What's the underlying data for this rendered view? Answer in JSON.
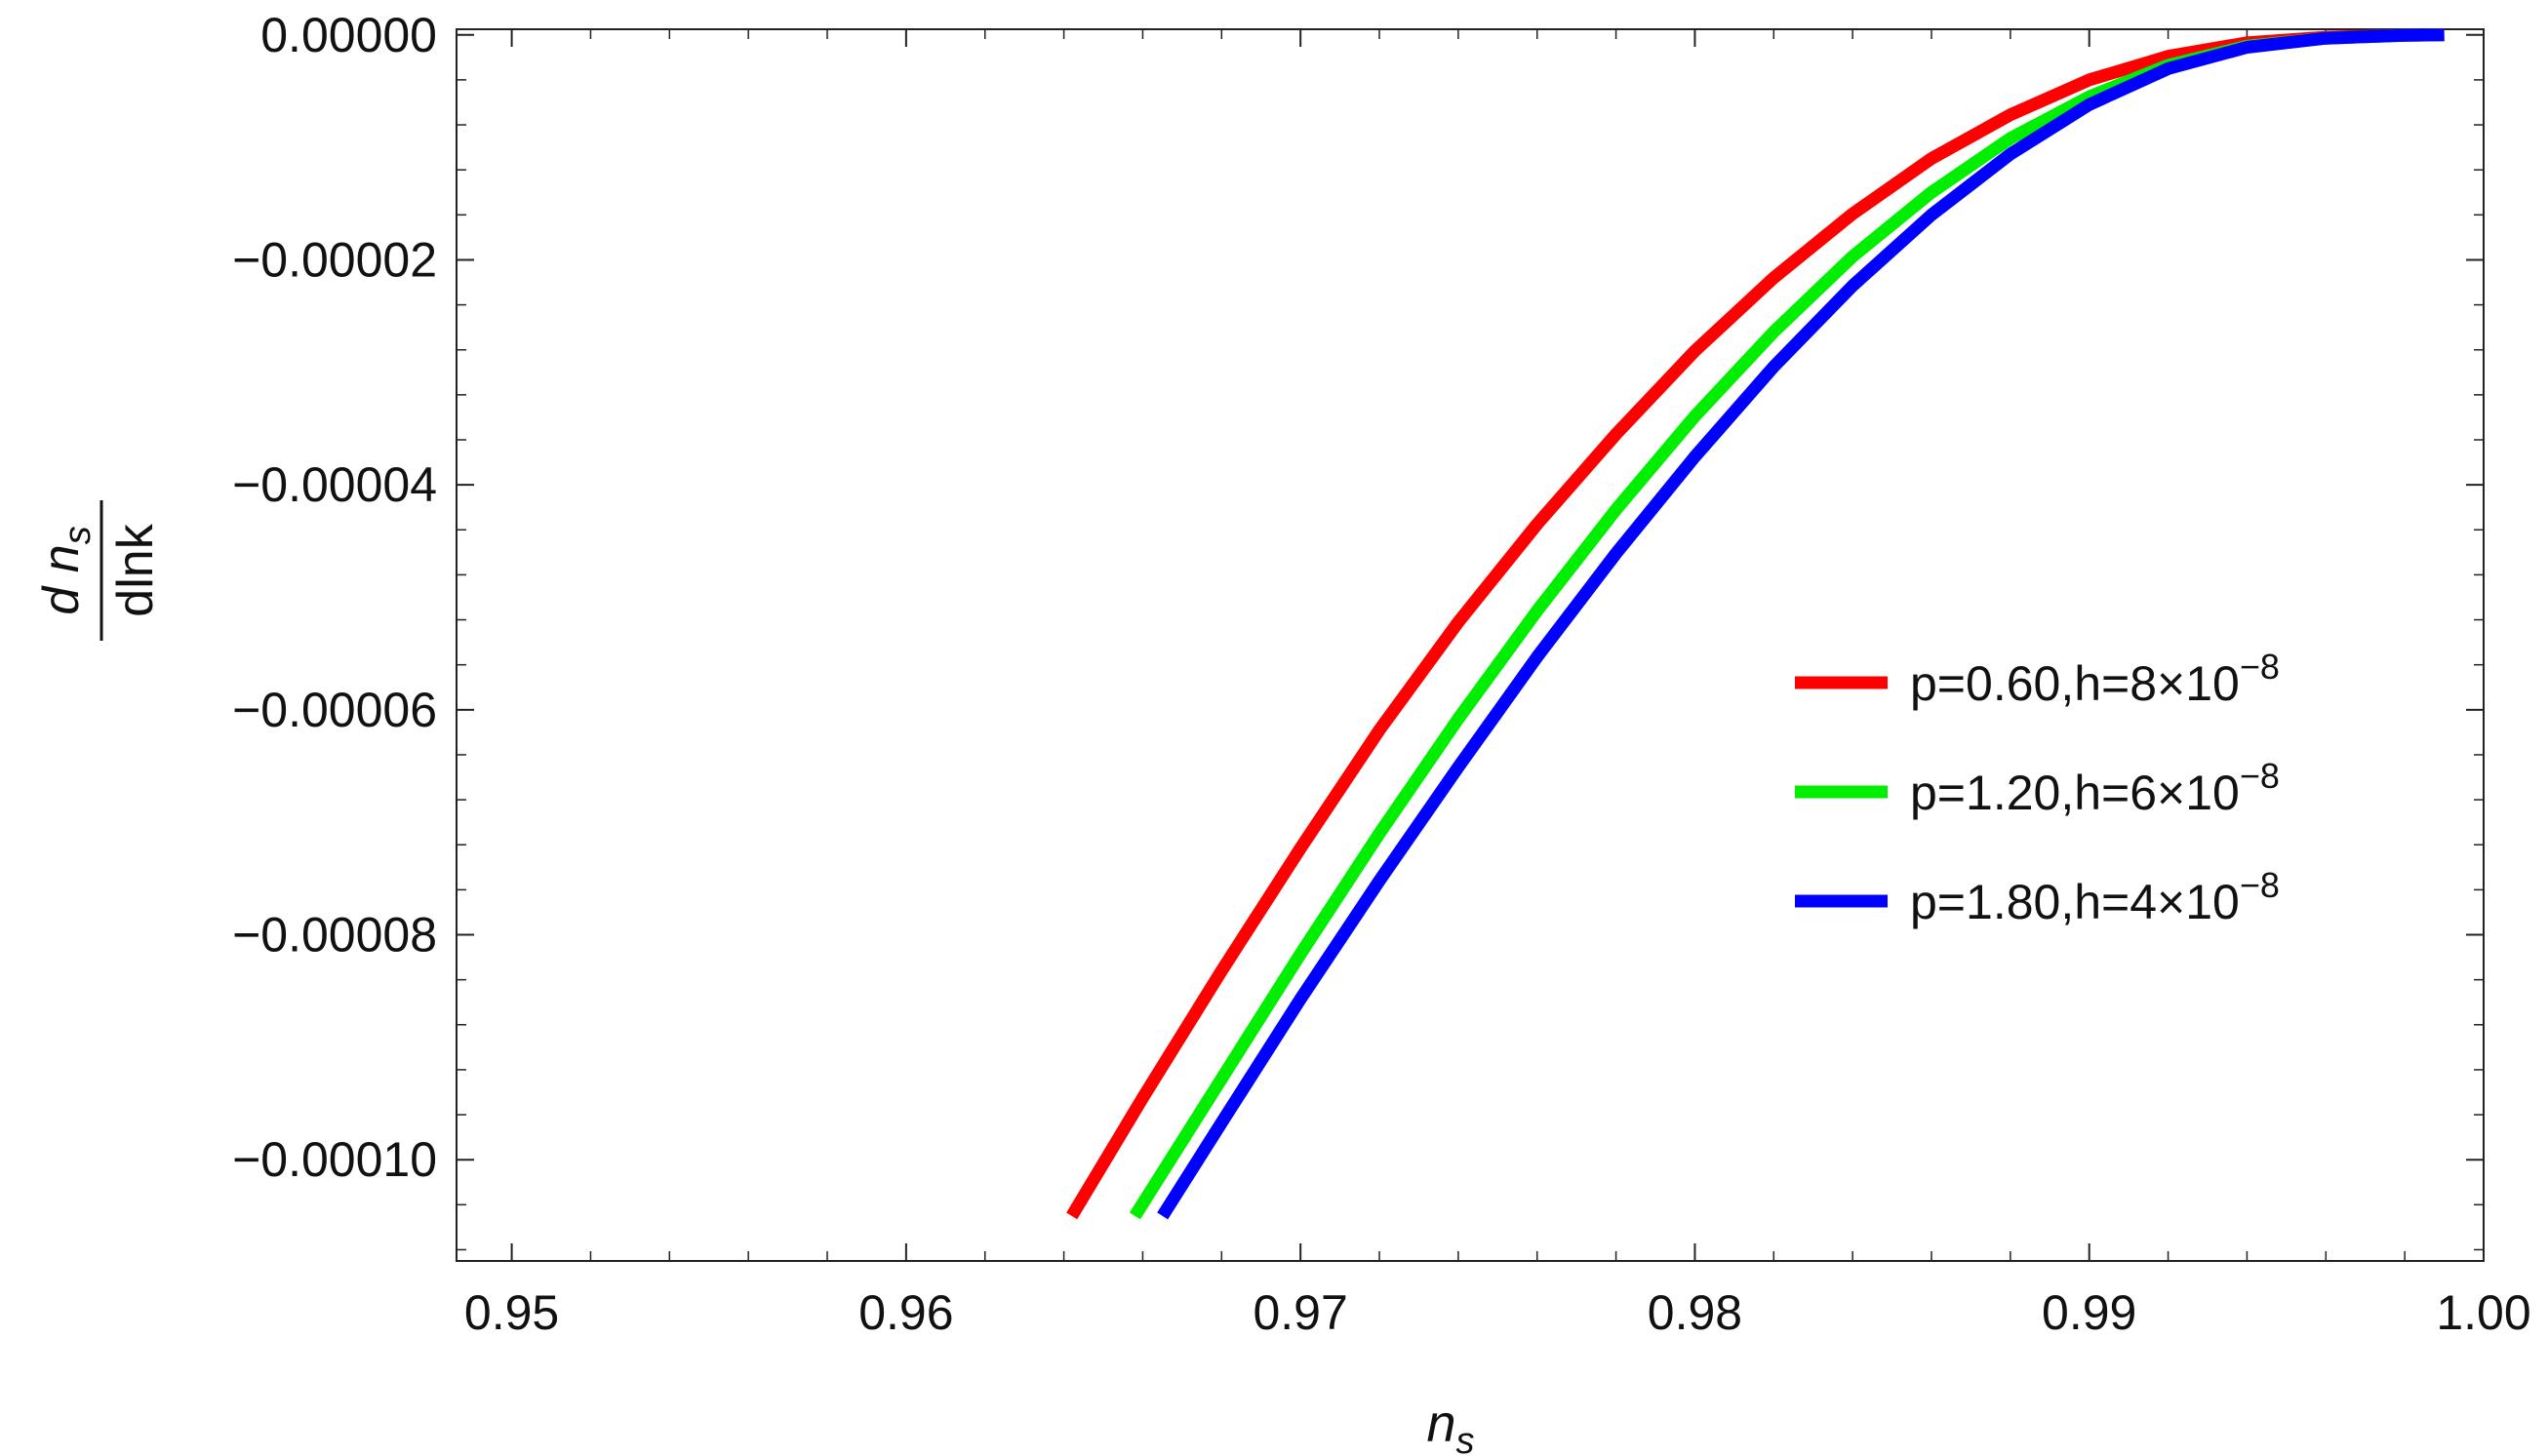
{
  "chart_data": {
    "type": "line",
    "title": "",
    "xlabel": {
      "main": "n",
      "sub": "s"
    },
    "ylabel": {
      "numerator_main": "d n",
      "numerator_sub": "s",
      "denominator": "dlnk"
    },
    "xlim": [
      0.9486,
      1.0
    ],
    "ylim": [
      -0.000109,
      5e-07
    ],
    "x_ticks": [
      {
        "value": 0.95,
        "label": "0.95"
      },
      {
        "value": 0.96,
        "label": "0.96"
      },
      {
        "value": 0.97,
        "label": "0.97"
      },
      {
        "value": 0.98,
        "label": "0.98"
      },
      {
        "value": 0.99,
        "label": "0.99"
      },
      {
        "value": 1.0,
        "label": "1.00"
      }
    ],
    "y_ticks": [
      {
        "value": 0.0,
        "label": "0.00000"
      },
      {
        "value": -2e-05,
        "label": "−0.00002"
      },
      {
        "value": -4e-05,
        "label": "−0.00004"
      },
      {
        "value": -6e-05,
        "label": "−0.00006"
      },
      {
        "value": -8e-05,
        "label": "−0.00008"
      },
      {
        "value": -0.0001,
        "label": "−0.00010"
      }
    ],
    "grid": false,
    "legend_position": "right",
    "series": [
      {
        "name": "p=0.60,h=8×10",
        "exponent": "−8",
        "color": "#ff0000",
        "points": [
          [
            0.9642,
            -0.000105
          ],
          [
            0.966,
            -9.45e-05
          ],
          [
            0.968,
            -8.32e-05
          ],
          [
            0.97,
            -7.23e-05
          ],
          [
            0.972,
            -6.18e-05
          ],
          [
            0.974,
            -5.22e-05
          ],
          [
            0.976,
            -4.35e-05
          ],
          [
            0.978,
            -3.55e-05
          ],
          [
            0.98,
            -2.81e-05
          ],
          [
            0.982,
            -2.16e-05
          ],
          [
            0.984,
            -1.59e-05
          ],
          [
            0.986,
            -1.1e-05
          ],
          [
            0.988,
            -7.1e-06
          ],
          [
            0.99,
            -4e-06
          ],
          [
            0.992,
            -1.9e-06
          ],
          [
            0.994,
            -7e-07
          ],
          [
            0.996,
            -2e-07
          ],
          [
            0.998,
            -5e-08
          ],
          [
            0.999,
            0.0
          ]
        ]
      },
      {
        "name": "p=1.20,h=6×10",
        "exponent": "−8",
        "color": "#00ee00",
        "points": [
          [
            0.9658,
            -0.000105
          ],
          [
            0.968,
            -9.28e-05
          ],
          [
            0.97,
            -8.17e-05
          ],
          [
            0.972,
            -7.1e-05
          ],
          [
            0.974,
            -6.08e-05
          ],
          [
            0.976,
            -5.12e-05
          ],
          [
            0.978,
            -4.22e-05
          ],
          [
            0.98,
            -3.39e-05
          ],
          [
            0.982,
            -2.64e-05
          ],
          [
            0.984,
            -1.97e-05
          ],
          [
            0.986,
            -1.4e-05
          ],
          [
            0.988,
            -9.2e-06
          ],
          [
            0.99,
            -5.5e-06
          ],
          [
            0.992,
            -2.7e-06
          ],
          [
            0.994,
            -1e-06
          ],
          [
            0.996,
            -3e-07
          ],
          [
            0.998,
            -5e-08
          ],
          [
            0.999,
            0.0
          ]
        ]
      },
      {
        "name": "p=1.80,h=4×10",
        "exponent": "−8",
        "color": "#0000ff",
        "points": [
          [
            0.9665,
            -0.000105
          ],
          [
            0.968,
            -9.67e-05
          ],
          [
            0.97,
            -8.57e-05
          ],
          [
            0.972,
            -7.52e-05
          ],
          [
            0.974,
            -6.51e-05
          ],
          [
            0.976,
            -5.53e-05
          ],
          [
            0.978,
            -4.61e-05
          ],
          [
            0.98,
            -3.75e-05
          ],
          [
            0.982,
            -2.95e-05
          ],
          [
            0.984,
            -2.23e-05
          ],
          [
            0.986,
            -1.6e-05
          ],
          [
            0.988,
            -1.06e-05
          ],
          [
            0.99,
            -6.2e-06
          ],
          [
            0.992,
            -3e-06
          ],
          [
            0.994,
            -1.1e-06
          ],
          [
            0.996,
            -3e-07
          ],
          [
            0.998,
            -5e-08
          ],
          [
            0.999,
            0.0
          ]
        ]
      }
    ]
  }
}
